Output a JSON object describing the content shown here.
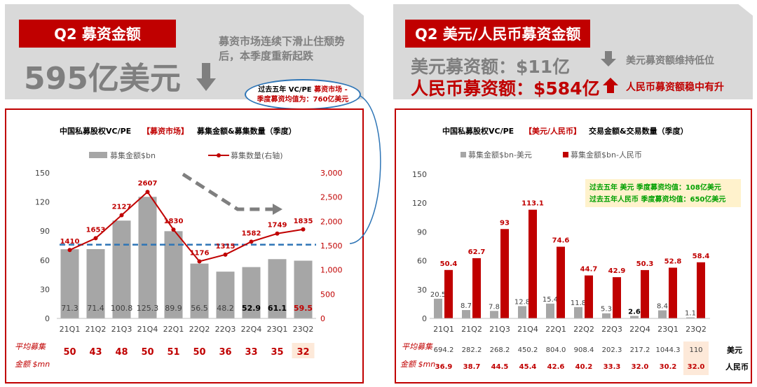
{
  "left_header": {
    "tag": "Q2 募资金额",
    "big_value": "595亿美元",
    "note": "募资市场连续下滑止住颓势后，本季度重新起跌",
    "callout": [
      "过去五年 VC/PE ",
      "募资市场 - ",
      "季度募资均值为：760亿美元"
    ]
  },
  "right_header": {
    "tag": "Q2 美元/人民币募资金额",
    "usd_label": "美元募资额：$11亿",
    "rmb_label": "人民币募资额：$584亿",
    "usd_note": "美元募资额维持低位",
    "rmb_note": "人民币募资额稳中有升"
  },
  "colors": {
    "red": "#c00000",
    "grey": "#a6a6a6",
    "blue": "#2e75b6",
    "highlight": "#fde9d9"
  },
  "left_table": {
    "row_label_1": "平均募集",
    "row_label_2": "金额 $mn",
    "values": [
      "50",
      "43",
      "48",
      "50",
      "51",
      "50",
      "36",
      "33",
      "35",
      "32"
    ],
    "highlight_index": 9
  },
  "right_table": {
    "row_label_1": "平均募集",
    "row_label_2": "金额 $mn",
    "usd": [
      "694.2",
      "282.2",
      "268.2",
      "450.2",
      "804.0",
      "908.4",
      "202.3",
      "217.2",
      "1044.3",
      "110"
    ],
    "rmb": [
      "36.9",
      "38.7",
      "44.5",
      "45.4",
      "42.6",
      "40.2",
      "33.3",
      "32.0",
      "30.2",
      "32.0"
    ],
    "usd_unit": "美元",
    "rmb_unit": "人民币",
    "highlight_index": 9
  },
  "chart_data": [
    {
      "type": "bar",
      "title_parts": [
        "中国私募股权VC/PE",
        "【募资市场】",
        " 募集金额&募集数量（季度）"
      ],
      "categories": [
        "21Q1",
        "21Q2",
        "21Q3",
        "21Q4",
        "22Q1",
        "22Q2",
        "22Q3",
        "22Q4",
        "23Q1",
        "23Q2"
      ],
      "series": [
        {
          "name": "募集金额$bn",
          "type": "bar",
          "axis": "left",
          "values": [
            71.3,
            71.4,
            100.8,
            125.3,
            89.9,
            56.5,
            48.2,
            52.9,
            61.1,
            59.5
          ]
        },
        {
          "name": "募集数量(右轴)",
          "type": "line",
          "axis": "right",
          "values": [
            1410,
            1653,
            2127,
            2607,
            1830,
            1176,
            1315,
            1582,
            1749,
            1835
          ]
        }
      ],
      "average_line": 760,
      "ylim": [
        0,
        150
      ],
      "yticks": [
        0,
        30,
        60,
        90,
        120,
        150
      ],
      "y2lim": [
        0,
        3000
      ],
      "y2ticks": [
        "0",
        "500",
        "1,000",
        "1,500",
        "2,000",
        "2,500",
        "3,000"
      ]
    },
    {
      "type": "bar",
      "title_parts": [
        "中国私募股权VC/PE",
        "【美元/人民币】",
        " 交易金额&交易数量（季度）"
      ],
      "categories": [
        "21Q1",
        "21Q2",
        "21Q3",
        "21Q4",
        "22Q1",
        "22Q2",
        "22Q3",
        "22Q4",
        "23Q1",
        "23Q2"
      ],
      "series": [
        {
          "name": "募集金额$bn-美元",
          "values": [
            20.5,
            8.7,
            7.8,
            12.8,
            15.4,
            11.8,
            5.3,
            2.6,
            8.4,
            1.1
          ],
          "labels": [
            "20.5",
            "8.7",
            "7.8",
            "12.8",
            "15.4",
            "11.8",
            "5.3",
            "2.6",
            "8.4",
            "1.1"
          ]
        },
        {
          "name": "募集金额$bn-人民币",
          "values": [
            50.4,
            62.7,
            93,
            113.1,
            74.6,
            44.7,
            42.9,
            50.3,
            52.8,
            58.4
          ]
        }
      ],
      "ylim": [
        0,
        150
      ],
      "yticks": [
        0,
        30,
        60,
        90,
        120,
        150
      ],
      "annotation": [
        "过去五年 美元  季度募资均值：108亿美元",
        "过去五年人民币 季度募资均值：650亿美元"
      ]
    }
  ]
}
